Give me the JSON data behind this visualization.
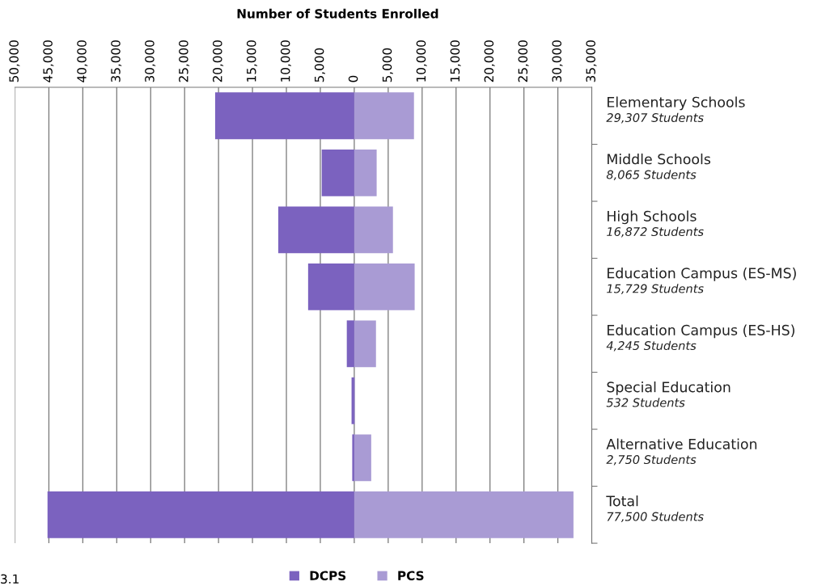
{
  "chart_data": {
    "type": "bar",
    "orientation": "horizontal",
    "stacked": true,
    "title": "Number of Students Enrolled",
    "categories": [
      "Elementary Schools",
      "Middle Schools",
      "High Schools",
      "Education Campus (ES-MS)",
      "Education Campus (ES-HS)",
      "Special Education",
      "Alternative Education",
      "Total"
    ],
    "series": [
      {
        "name": "DCPS",
        "color": "#7b62bf",
        "values": [
          -20500,
          -4800,
          -11200,
          -6800,
          -1100,
          -400,
          -300,
          -45200
        ]
      },
      {
        "name": "PCS",
        "color": "#a99bd4",
        "values": [
          8800,
          3300,
          5700,
          8900,
          3200,
          100,
          2500,
          32300
        ]
      }
    ],
    "xlim": [
      -50000,
      35000
    ],
    "xticks": [
      {
        "value": -50000,
        "label": "50,000"
      },
      {
        "value": -45000,
        "label": "45,000"
      },
      {
        "value": -40000,
        "label": "40,000"
      },
      {
        "value": -35000,
        "label": "35,000"
      },
      {
        "value": -30000,
        "label": "30,000"
      },
      {
        "value": -25000,
        "label": "25,000"
      },
      {
        "value": -20000,
        "label": "20,000"
      },
      {
        "value": -15000,
        "label": "15,000"
      },
      {
        "value": -10000,
        "label": "10,000"
      },
      {
        "value": -5000,
        "label": "5,000"
      },
      0,
      {
        "value": 5000,
        "label": "5,000"
      },
      {
        "value": 10000,
        "label": "10,000"
      },
      {
        "value": 15000,
        "label": "15,000"
      },
      {
        "value": 20000,
        "label": "20,000"
      },
      {
        "value": 25000,
        "label": "25,000"
      },
      {
        "value": 30000,
        "label": "30,000"
      },
      {
        "value": 35000,
        "label": "35,000"
      }
    ],
    "grid": "x",
    "legend": "bottom",
    "annotations": [
      "29,307 Students",
      "8,065 Students",
      "16,872 Students",
      "15,729 Students",
      "4,245 Students",
      "532 Students",
      "2,750 Students",
      "77,500 Students",
      "3.1"
    ]
  }
}
